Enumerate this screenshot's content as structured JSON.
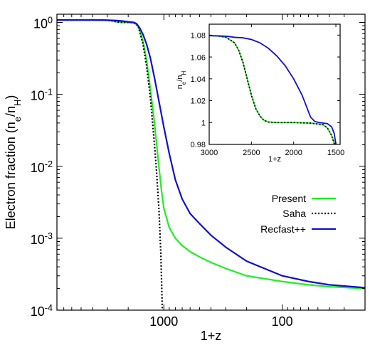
{
  "chart_data": [
    {
      "type": "line",
      "xlabel": "1+z",
      "ylabel": "Electron fraction (n",
      "ylabel_sub1": "e",
      "ylabel_mid": "/n",
      "ylabel_sub2": "H",
      "ylabel_end": ")",
      "xscale": "log",
      "yscale": "log",
      "xlim": [
        8000,
        20
      ],
      "ylim": [
        0.0001,
        1.3
      ],
      "x_ticks": [
        {
          "value": 1000,
          "label": "1000"
        },
        {
          "value": 100,
          "label": "100"
        }
      ],
      "y_ticks": [
        {
          "value": 1,
          "base": "10",
          "exp": "0"
        },
        {
          "value": 0.1,
          "base": "10",
          "exp": "-1"
        },
        {
          "value": 0.01,
          "base": "10",
          "exp": "-2"
        },
        {
          "value": 0.001,
          "base": "10",
          "exp": "-3"
        },
        {
          "value": 0.0001,
          "base": "10",
          "exp": "-4"
        }
      ],
      "legend_position": "bottom-right",
      "series": [
        {
          "name": "Present",
          "color": "#22ee22",
          "style": "solid",
          "x": [
            8000,
            5000,
            3200,
            2700,
            2500,
            2300,
            2000,
            1800,
            1650,
            1500,
            1400,
            1300,
            1200,
            1150,
            1100,
            1050,
            1000,
            900,
            800,
            700,
            600,
            500,
            400,
            300,
            200,
            100,
            60,
            40,
            20
          ],
          "y": [
            1.08,
            1.079,
            1.077,
            1.05,
            1.02,
            1.002,
            1.0,
            0.99,
            0.9,
            0.55,
            0.3,
            0.12,
            0.04,
            0.02,
            0.0098,
            0.0048,
            0.0026,
            0.0014,
            0.001,
            0.00079,
            0.00065,
            0.00055,
            0.00046,
            0.00038,
            0.0003,
            0.00025,
            0.000225,
            0.000212,
            0.0002
          ]
        },
        {
          "name": "Saha",
          "color": "#000000",
          "style": "dotted",
          "x": [
            8000,
            5000,
            3200,
            2700,
            2500,
            2300,
            2000,
            1800,
            1650,
            1500,
            1400,
            1300,
            1200,
            1150,
            1100,
            1060,
            1030
          ],
          "y": [
            1.08,
            1.079,
            1.077,
            1.05,
            1.02,
            1.002,
            1.0,
            0.99,
            0.9,
            0.5,
            0.25,
            0.09,
            0.02,
            0.008,
            0.0025,
            0.0006,
            0.0001
          ]
        },
        {
          "name": "Recfast++",
          "color": "#1010cc",
          "style": "solid",
          "x": [
            8000,
            5000,
            3200,
            3000,
            2700,
            2500,
            2300,
            2000,
            1800,
            1700,
            1600,
            1500,
            1400,
            1300,
            1200,
            1100,
            1000,
            900,
            800,
            700,
            600,
            500,
            400,
            300,
            200,
            100,
            60,
            40,
            20
          ],
          "y": [
            1.08,
            1.079,
            1.077,
            1.075,
            1.07,
            1.062,
            1.05,
            1.02,
            1.003,
            0.96,
            0.84,
            0.68,
            0.5,
            0.32,
            0.17,
            0.08,
            0.035,
            0.015,
            0.0065,
            0.0035,
            0.0022,
            0.0016,
            0.0011,
            0.00075,
            0.00048,
            0.0003,
            0.00025,
            0.000225,
            0.000205
          ]
        }
      ]
    },
    {
      "type": "line",
      "inset": true,
      "xlabel": "1+z",
      "ylabel_base1": "n",
      "ylabel_sub1": "e",
      "ylabel_mid": "/n",
      "ylabel_sub2": "H",
      "xscale": "linear",
      "yscale": "linear",
      "xlim": [
        3000,
        1450
      ],
      "ylim": [
        0.98,
        1.09
      ],
      "x_ticks": [
        {
          "value": 3000,
          "label": "3000"
        },
        {
          "value": 2500,
          "label": "2500"
        },
        {
          "value": 2000,
          "label": "2000"
        },
        {
          "value": 1500,
          "label": "1500"
        }
      ],
      "y_ticks": [
        {
          "value": 0.98,
          "label": "0.98"
        },
        {
          "value": 1.0,
          "label": "1"
        },
        {
          "value": 1.02,
          "label": "1.02"
        },
        {
          "value": 1.04,
          "label": "1.04"
        },
        {
          "value": 1.06,
          "label": "1.06"
        },
        {
          "value": 1.08,
          "label": "1.08"
        }
      ],
      "series": [
        {
          "name": "Present",
          "color": "#22ee22",
          "style": "solid",
          "x": [
            3000,
            2900,
            2800,
            2700,
            2650,
            2600,
            2550,
            2500,
            2450,
            2400,
            2350,
            2300,
            2200,
            2000,
            1800,
            1700,
            1650,
            1600,
            1550,
            1500
          ],
          "y": [
            1.0795,
            1.0793,
            1.078,
            1.073,
            1.066,
            1.055,
            1.04,
            1.025,
            1.013,
            1.006,
            1.002,
            1.0005,
            1.0,
            1.0,
            0.9995,
            0.9985,
            0.998,
            0.995,
            0.988,
            0.976
          ]
        },
        {
          "name": "Saha",
          "color": "#000000",
          "style": "dotted",
          "x": [
            3000,
            2900,
            2800,
            2700,
            2650,
            2600,
            2550,
            2500,
            2450,
            2400,
            2350,
            2300,
            2200,
            2000,
            1800,
            1700,
            1650,
            1600,
            1550,
            1500
          ],
          "y": [
            1.0795,
            1.0793,
            1.078,
            1.073,
            1.066,
            1.055,
            1.04,
            1.025,
            1.013,
            1.006,
            1.002,
            1.0005,
            1.0,
            1.0,
            0.9995,
            0.9985,
            0.998,
            0.995,
            0.988,
            0.976
          ]
        },
        {
          "name": "Recfast++",
          "color": "#1010cc",
          "style": "solid",
          "x": [
            3000,
            2900,
            2800,
            2700,
            2600,
            2500,
            2400,
            2300,
            2200,
            2100,
            2000,
            1900,
            1850,
            1800,
            1750,
            1700,
            1650,
            1600,
            1550,
            1520,
            1500
          ],
          "y": [
            1.0795,
            1.0793,
            1.079,
            1.078,
            1.0775,
            1.076,
            1.073,
            1.068,
            1.061,
            1.052,
            1.04,
            1.025,
            1.015,
            1.005,
            1.001,
            1.0,
            0.9995,
            0.999,
            0.996,
            0.99,
            0.98
          ]
        }
      ]
    }
  ]
}
